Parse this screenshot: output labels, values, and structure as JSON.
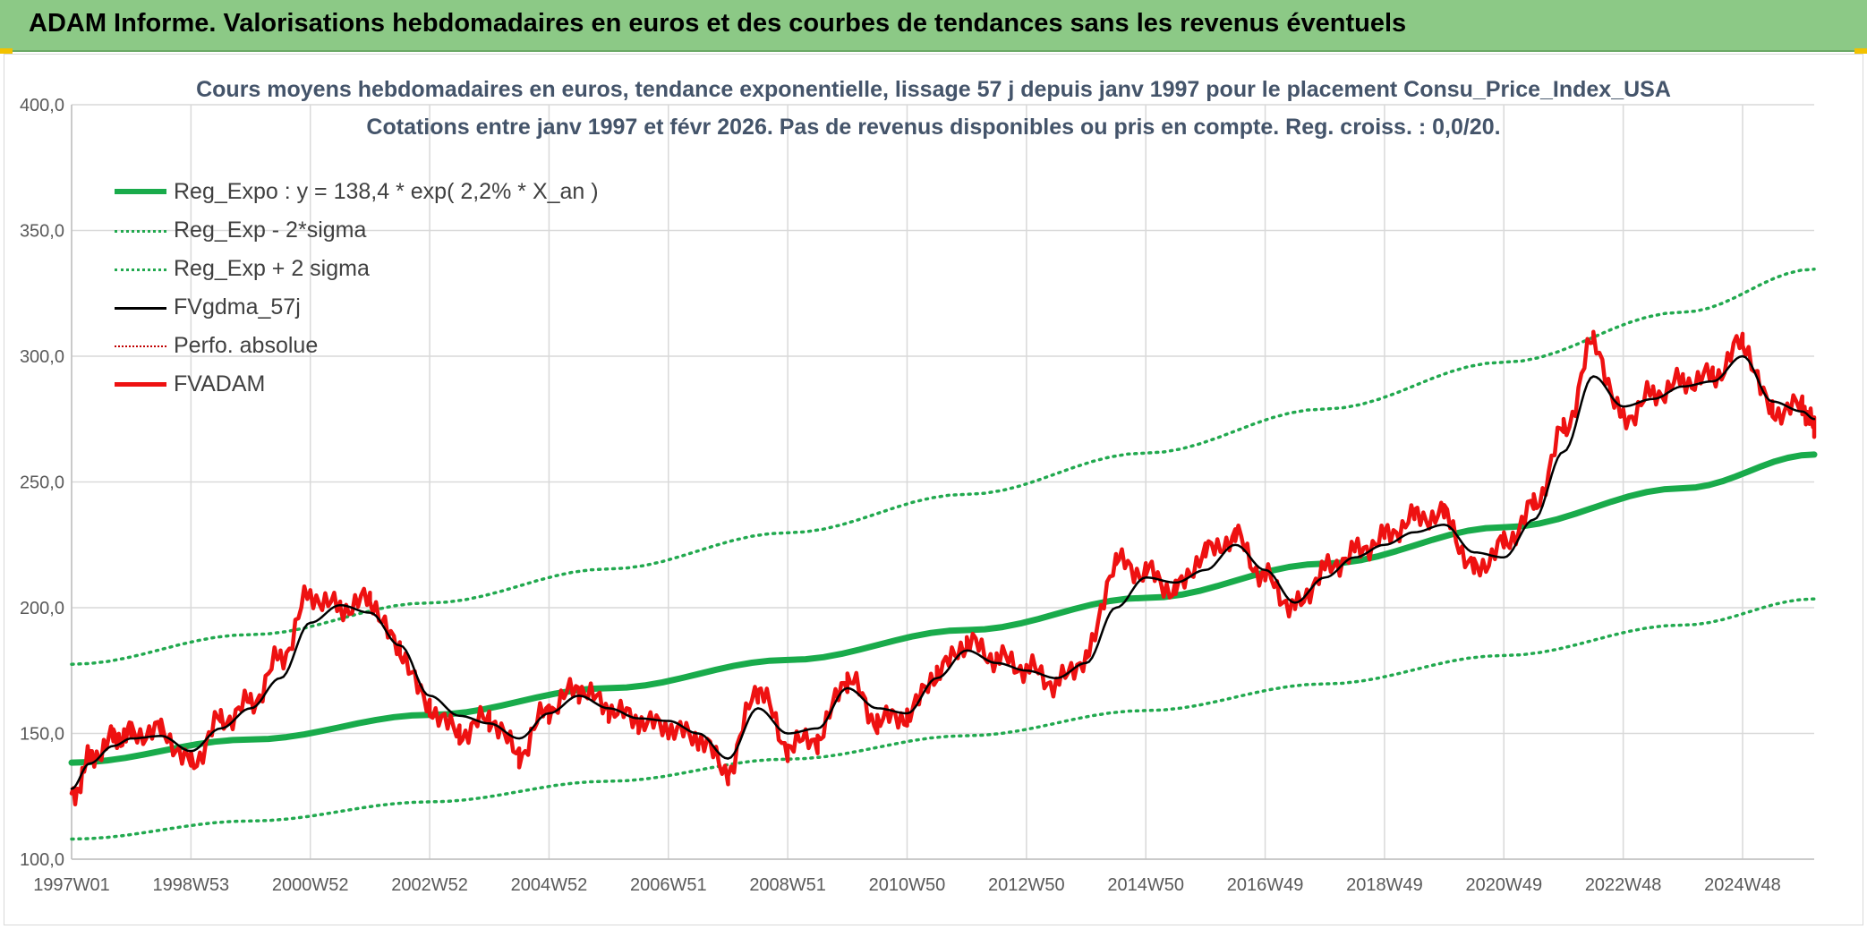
{
  "header": {
    "title": "ADAM Informe. Valorisations hebdomadaires en euros et des courbes de tendances sans les revenus éventuels"
  },
  "colors": {
    "header_bg": "#8cc986",
    "reg_expo": "#19ab4b",
    "sigma_bands": "#22a94f",
    "fvgdma": "#000000",
    "perfo": "#c00000",
    "fvadam": "#ee1111",
    "title_text": "#44546a",
    "axis_text": "#595959",
    "grid": "#d9d9d9"
  },
  "chart_data": {
    "type": "line",
    "title": "Cours moyens hebdomadaires en euros, tendance exponentielle, lissage 57 j depuis janv 1997 pour le placement Consu_Price_Index_USA",
    "subtitle": "Cotations entre janv 1997 et févr 2026. Pas de revenus disponibles ou pris en compte. Reg. croiss. : 0,0/20.",
    "xlabel": "",
    "ylabel": "",
    "ylim": [
      100,
      400
    ],
    "xlim": [
      1997.0,
      2026.2
    ],
    "y_ticks": [
      "100,0",
      "150,0",
      "200,0",
      "250,0",
      "300,0",
      "350,0",
      "400,0"
    ],
    "y_tick_values": [
      100,
      150,
      200,
      250,
      300,
      350,
      400
    ],
    "x_ticks": [
      "1997W01",
      "1998W53",
      "2000W52",
      "2002W52",
      "2004W52",
      "2006W51",
      "2008W51",
      "2010W50",
      "2012W50",
      "2014W50",
      "2016W49",
      "2018W49",
      "2020W49",
      "2022W48",
      "2024W48"
    ],
    "x_tick_values": [
      1997.0,
      1999.0,
      2001.0,
      2003.0,
      2005.0,
      2007.0,
      2009.0,
      2011.0,
      2013.0,
      2015.0,
      2017.0,
      2019.0,
      2021.0,
      2023.0,
      2025.0
    ],
    "grid": true,
    "legend_position": "top-left",
    "series": [
      {
        "name": "Reg_Expo : y = 138,4 * exp( 2,2% *  X_an )",
        "style": "solid-thick",
        "x": [
          1997.0,
          2000.0,
          2003.0,
          2006.0,
          2009.0,
          2012.0,
          2015.0,
          2018.0,
          2021.0,
          2024.0,
          2026.2
        ],
        "values": [
          138.4,
          147.6,
          157.4,
          168.0,
          179.2,
          191.1,
          203.9,
          217.5,
          232.0,
          247.5,
          260.9
        ]
      },
      {
        "name": "Reg_Exp - 2*sigma",
        "style": "dotted",
        "x": [
          1997.0,
          2000.0,
          2003.0,
          2006.0,
          2009.0,
          2012.0,
          2015.0,
          2018.0,
          2021.0,
          2024.0,
          2026.2
        ],
        "values": [
          108.0,
          115.2,
          122.8,
          131.0,
          139.8,
          149.1,
          159.1,
          169.7,
          181.0,
          193.1,
          203.5
        ]
      },
      {
        "name": "Reg_Exp + 2 sigma",
        "style": "dotted",
        "x": [
          1997.0,
          2000.0,
          2003.0,
          2006.0,
          2009.0,
          2012.0,
          2015.0,
          2018.0,
          2021.0,
          2024.0,
          2026.2
        ],
        "values": [
          177.5,
          189.3,
          201.9,
          215.4,
          229.8,
          245.1,
          261.5,
          279.0,
          297.6,
          317.5,
          334.6
        ]
      },
      {
        "name": "FVgdma_57j",
        "style": "solid-thin",
        "x": [
          1997.0,
          1997.3,
          1997.7,
          1998.0,
          1998.5,
          1999.0,
          1999.5,
          2000.0,
          2000.5,
          2001.0,
          2001.5,
          2002.0,
          2002.5,
          2003.0,
          2003.5,
          2004.0,
          2004.5,
          2005.0,
          2005.5,
          2006.0,
          2006.5,
          2007.0,
          2007.5,
          2008.0,
          2008.5,
          2009.0,
          2009.5,
          2010.0,
          2010.5,
          2011.0,
          2011.5,
          2012.0,
          2012.5,
          2013.0,
          2013.5,
          2014.0,
          2014.5,
          2015.0,
          2015.5,
          2016.0,
          2016.5,
          2017.0,
          2017.5,
          2018.0,
          2018.5,
          2019.0,
          2019.5,
          2020.0,
          2020.5,
          2021.0,
          2021.5,
          2022.0,
          2022.5,
          2023.0,
          2023.5,
          2024.0,
          2024.5,
          2025.0,
          2025.5,
          2026.0,
          2026.2
        ],
        "values": [
          128,
          138,
          145,
          148,
          149,
          143,
          152,
          160,
          172,
          194,
          201,
          198,
          185,
          165,
          157,
          154,
          148,
          158,
          165,
          160,
          156,
          155,
          150,
          140,
          160,
          150,
          152,
          168,
          160,
          158,
          172,
          183,
          178,
          175,
          172,
          178,
          200,
          212,
          210,
          215,
          225,
          215,
          202,
          212,
          220,
          225,
          230,
          233,
          222,
          220,
          235,
          262,
          292,
          280,
          283,
          288,
          290,
          300,
          282,
          278,
          275
        ]
      },
      {
        "name": "Perfo. absolue",
        "style": "dotted",
        "x": [],
        "values": []
      },
      {
        "name": "FVADAM",
        "style": "solid-noisy",
        "x": [
          1997.0,
          1997.3,
          1997.7,
          1998.0,
          1998.5,
          1999.0,
          1999.5,
          2000.0,
          2000.5,
          2001.0,
          2001.5,
          2002.0,
          2002.5,
          2003.0,
          2003.5,
          2004.0,
          2004.5,
          2005.0,
          2005.5,
          2006.0,
          2006.5,
          2007.0,
          2007.5,
          2008.0,
          2008.5,
          2009.0,
          2009.5,
          2010.0,
          2010.5,
          2011.0,
          2011.5,
          2012.0,
          2012.5,
          2013.0,
          2013.5,
          2014.0,
          2014.5,
          2015.0,
          2015.5,
          2016.0,
          2016.5,
          2017.0,
          2017.5,
          2018.0,
          2018.5,
          2019.0,
          2019.5,
          2020.0,
          2020.5,
          2021.0,
          2021.5,
          2022.0,
          2022.5,
          2023.0,
          2023.5,
          2024.0,
          2024.5,
          2025.0,
          2025.5,
          2026.0,
          2026.2
        ],
        "values": [
          124,
          140,
          148,
          150,
          151,
          138,
          155,
          162,
          180,
          205,
          200,
          203,
          183,
          160,
          150,
          156,
          142,
          160,
          168,
          160,
          155,
          152,
          148,
          135,
          168,
          145,
          148,
          172,
          155,
          157,
          174,
          186,
          180,
          176,
          170,
          180,
          218,
          214,
          207,
          222,
          228,
          212,
          200,
          215,
          222,
          228,
          236,
          237,
          215,
          225,
          240,
          270,
          305,
          275,
          285,
          290,
          292,
          305,
          278,
          280,
          272
        ]
      }
    ]
  }
}
